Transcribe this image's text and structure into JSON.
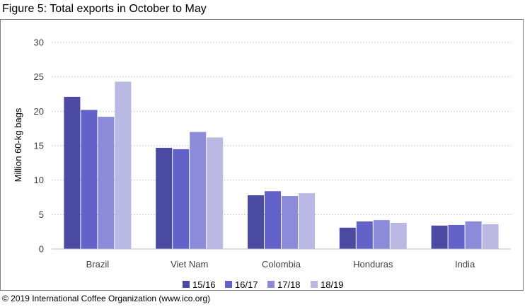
{
  "figure_title": "Figure 5: Total exports in October to May",
  "copyright": "© 2019 International Coffee Organization (www.ico.org)",
  "chart_data": {
    "type": "bar",
    "title": "Figure 5: Total exports in October to May",
    "xlabel": "",
    "ylabel": "Million 60-kg bags",
    "ylim": [
      0,
      30
    ],
    "yticks": [
      0,
      5,
      10,
      15,
      20,
      25,
      30
    ],
    "grid": true,
    "legend_position": "bottom",
    "categories": [
      "Brazil",
      "Viet Nam",
      "Colombia",
      "Honduras",
      "India"
    ],
    "series": [
      {
        "name": "15/16",
        "color": "#4a4aa3",
        "values": [
          22.1,
          14.7,
          7.8,
          3.1,
          3.4
        ]
      },
      {
        "name": "16/17",
        "color": "#6262c8",
        "values": [
          20.2,
          14.5,
          8.4,
          4.0,
          3.5
        ]
      },
      {
        "name": "17/18",
        "color": "#8b8bd9",
        "values": [
          19.2,
          17.0,
          7.7,
          4.2,
          4.0
        ]
      },
      {
        "name": "18/19",
        "color": "#b9b9e3",
        "values": [
          24.3,
          16.2,
          8.1,
          3.8,
          3.6
        ]
      }
    ]
  }
}
